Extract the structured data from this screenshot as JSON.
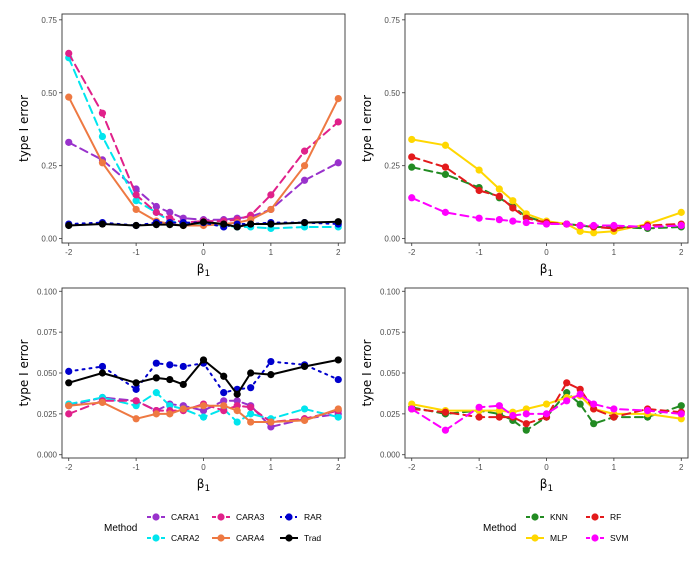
{
  "chart_data": [
    {
      "type": "line",
      "panel": "top-left",
      "xlabel": "β",
      "xlabel_sub": "1",
      "ylabel": "type I error",
      "xlim": [
        -2.1,
        2.1
      ],
      "ylim": [
        -0.015,
        0.77
      ],
      "xticks": [
        "-2",
        "-1",
        "0",
        "1",
        "2"
      ],
      "yticks": [
        "0.00",
        "0.25",
        "0.50",
        "0.75"
      ],
      "series": [
        {
          "name": "CARA1",
          "color": "#9932CC",
          "dash": "8,5",
          "x": [
            -2,
            -1.5,
            -1,
            -0.7,
            -0.5,
            -0.3,
            0,
            0.3,
            0.5,
            0.7,
            1,
            1.5,
            2
          ],
          "y": [
            0.33,
            0.27,
            0.17,
            0.11,
            0.09,
            0.07,
            0.065,
            0.065,
            0.07,
            0.075,
            0.1,
            0.2,
            0.26
          ]
        },
        {
          "name": "CARA2",
          "color": "#00E5EE",
          "dash": "8,5",
          "x": [
            -2,
            -1.5,
            -1,
            -0.7,
            -0.5,
            -0.3,
            0,
            0.3,
            0.5,
            0.7,
            1,
            1.5,
            2
          ],
          "y": [
            0.62,
            0.35,
            0.13,
            0.09,
            0.06,
            0.05,
            0.05,
            0.045,
            0.04,
            0.04,
            0.035,
            0.04,
            0.04
          ]
        },
        {
          "name": "CARA3",
          "color": "#E0218A",
          "dash": "8,5",
          "x": [
            -2,
            -1.5,
            -1,
            -0.7,
            -0.5,
            -0.3,
            0,
            0.3,
            0.5,
            0.7,
            1,
            1.5,
            2
          ],
          "y": [
            0.635,
            0.43,
            0.15,
            0.09,
            0.07,
            0.055,
            0.06,
            0.06,
            0.065,
            0.08,
            0.15,
            0.3,
            0.4
          ]
        },
        {
          "name": "CARA4",
          "color": "#EE7942",
          "dash": "",
          "x": [
            -2,
            -1.5,
            -1,
            -0.7,
            -0.5,
            -0.3,
            0,
            0.3,
            0.5,
            0.7,
            1,
            1.5,
            2
          ],
          "y": [
            0.485,
            0.26,
            0.1,
            0.06,
            0.05,
            0.045,
            0.045,
            0.05,
            0.055,
            0.065,
            0.1,
            0.25,
            0.48
          ]
        },
        {
          "name": "RAR",
          "color": "#0000CD",
          "dash": "2,5",
          "x": [
            -2,
            -1.5,
            -1,
            -0.7,
            -0.5,
            -0.3,
            0,
            0.3,
            0.5,
            0.7,
            1,
            1.5,
            2
          ],
          "y": [
            0.05,
            0.055,
            0.045,
            0.055,
            0.055,
            0.055,
            0.055,
            0.04,
            0.05,
            0.05,
            0.055,
            0.055,
            0.05
          ]
        },
        {
          "name": "Trad",
          "color": "#000000",
          "dash": "",
          "x": [
            -2,
            -1.5,
            -1,
            -0.7,
            -0.5,
            -0.3,
            0,
            0.3,
            0.5,
            0.7,
            1,
            1.5,
            2
          ],
          "y": [
            0.045,
            0.05,
            0.045,
            0.048,
            0.048,
            0.045,
            0.057,
            0.05,
            0.04,
            0.05,
            0.05,
            0.055,
            0.058
          ]
        }
      ]
    },
    {
      "type": "line",
      "panel": "top-right",
      "xlabel": "β",
      "xlabel_sub": "1",
      "ylabel": "type I error",
      "xlim": [
        -2.1,
        2.1
      ],
      "ylim": [
        -0.015,
        0.77
      ],
      "xticks": [
        "-2",
        "-1",
        "0",
        "1",
        "2"
      ],
      "yticks": [
        "0.00",
        "0.25",
        "0.50",
        "0.75"
      ],
      "series": [
        {
          "name": "KNN",
          "color": "#228B22",
          "dash": "8,5",
          "x": [
            -2,
            -1.5,
            -1,
            -0.7,
            -0.5,
            -0.3,
            0,
            0.3,
            0.5,
            0.7,
            1,
            1.5,
            2
          ],
          "y": [
            0.245,
            0.22,
            0.175,
            0.14,
            0.11,
            0.075,
            0.055,
            0.05,
            0.045,
            0.04,
            0.04,
            0.035,
            0.04
          ]
        },
        {
          "name": "MLP",
          "color": "#FFD700",
          "dash": "",
          "x": [
            -2,
            -1.5,
            -1,
            -0.7,
            -0.5,
            -0.3,
            0,
            0.3,
            0.5,
            0.7,
            1,
            1.5,
            2
          ],
          "y": [
            0.34,
            0.32,
            0.235,
            0.17,
            0.13,
            0.085,
            0.06,
            0.05,
            0.025,
            0.02,
            0.025,
            0.05,
            0.09
          ]
        },
        {
          "name": "RF",
          "color": "#E31A1C",
          "dash": "8,5",
          "x": [
            -2,
            -1.5,
            -1,
            -0.7,
            -0.5,
            -0.3,
            0,
            0.3,
            0.5,
            0.7,
            1,
            1.5,
            2
          ],
          "y": [
            0.28,
            0.245,
            0.165,
            0.145,
            0.105,
            0.07,
            0.055,
            0.05,
            0.045,
            0.04,
            0.035,
            0.045,
            0.05
          ]
        },
        {
          "name": "SVM",
          "color": "#FF00FF",
          "dash": "8,5",
          "x": [
            -2,
            -1.5,
            -1,
            -0.7,
            -0.5,
            -0.3,
            0,
            0.3,
            0.5,
            0.7,
            1,
            1.5,
            2
          ],
          "y": [
            0.14,
            0.09,
            0.07,
            0.065,
            0.06,
            0.055,
            0.05,
            0.05,
            0.045,
            0.045,
            0.045,
            0.04,
            0.045
          ]
        }
      ]
    },
    {
      "type": "line",
      "panel": "bottom-left",
      "xlabel": "β",
      "xlabel_sub": "1",
      "ylabel": "type I error",
      "xlim": [
        -2.1,
        2.1
      ],
      "ylim": [
        -0.002,
        0.102
      ],
      "xticks": [
        "-2",
        "-1",
        "0",
        "1",
        "2"
      ],
      "yticks": [
        "0.000",
        "0.025",
        "0.050",
        "0.075",
        "0.100"
      ],
      "series": [
        {
          "name": "CARA1",
          "color": "#9932CC",
          "dash": "8,5",
          "x": [
            -2,
            -1.5,
            -1,
            -0.7,
            -0.5,
            -0.3,
            0,
            0.3,
            0.5,
            0.7,
            1,
            1.5,
            2
          ],
          "y": [
            0.03,
            0.035,
            0.033,
            0.027,
            0.031,
            0.03,
            0.027,
            0.033,
            0.033,
            0.03,
            0.017,
            0.022,
            0.025
          ]
        },
        {
          "name": "CARA2",
          "color": "#00E5EE",
          "dash": "8,5",
          "x": [
            -2,
            -1.5,
            -1,
            -0.7,
            -0.5,
            -0.3,
            0,
            0.3,
            0.5,
            0.7,
            1,
            1.5,
            2
          ],
          "y": [
            0.031,
            0.035,
            0.03,
            0.038,
            0.03,
            0.028,
            0.023,
            0.028,
            0.02,
            0.025,
            0.022,
            0.028,
            0.023
          ]
        },
        {
          "name": "CARA3",
          "color": "#E0218A",
          "dash": "8,5",
          "x": [
            -2,
            -1.5,
            -1,
            -0.7,
            -0.5,
            -0.3,
            0,
            0.3,
            0.5,
            0.7,
            1,
            1.5,
            2
          ],
          "y": [
            0.025,
            0.033,
            0.033,
            0.027,
            0.027,
            0.027,
            0.031,
            0.027,
            0.03,
            0.029,
            0.02,
            0.022,
            0.027
          ]
        },
        {
          "name": "CARA4",
          "color": "#EE7942",
          "dash": "",
          "x": [
            -2,
            -1.5,
            -1,
            -0.7,
            -0.5,
            -0.3,
            0,
            0.3,
            0.5,
            0.7,
            1,
            1.5,
            2
          ],
          "y": [
            0.03,
            0.032,
            0.022,
            0.025,
            0.025,
            0.028,
            0.03,
            0.03,
            0.027,
            0.02,
            0.02,
            0.021,
            0.028
          ]
        },
        {
          "name": "RAR",
          "color": "#0000CD",
          "dash": "2,5",
          "x": [
            -2,
            -1.5,
            -1,
            -0.7,
            -0.5,
            -0.3,
            0,
            0.3,
            0.5,
            0.7,
            1,
            1.5,
            2
          ],
          "y": [
            0.051,
            0.054,
            0.04,
            0.056,
            0.055,
            0.054,
            0.056,
            0.038,
            0.04,
            0.041,
            0.057,
            0.055,
            0.046
          ]
        },
        {
          "name": "Trad",
          "color": "#000000",
          "dash": "",
          "x": [
            -2,
            -1.5,
            -1,
            -0.7,
            -0.5,
            -0.3,
            0,
            0.3,
            0.5,
            0.7,
            1,
            1.5,
            2
          ],
          "y": [
            0.044,
            0.05,
            0.044,
            0.047,
            0.046,
            0.043,
            0.058,
            0.048,
            0.037,
            0.05,
            0.049,
            0.054,
            0.058
          ]
        }
      ]
    },
    {
      "type": "line",
      "panel": "bottom-right",
      "xlabel": "β",
      "xlabel_sub": "1",
      "ylabel": "type I error",
      "xlim": [
        -2.1,
        2.1
      ],
      "ylim": [
        -0.002,
        0.102
      ],
      "xticks": [
        "-2",
        "-1",
        "0",
        "1",
        "2"
      ],
      "yticks": [
        "0.000",
        "0.025",
        "0.050",
        "0.075",
        "0.100"
      ],
      "series": [
        {
          "name": "KNN",
          "color": "#228B22",
          "dash": "8,5",
          "x": [
            -2,
            -1.5,
            -1,
            -0.7,
            -0.5,
            -0.3,
            0,
            0.3,
            0.5,
            0.7,
            1,
            1.5,
            2
          ],
          "y": [
            0.029,
            0.025,
            0.027,
            0.025,
            0.021,
            0.015,
            0.023,
            0.038,
            0.031,
            0.019,
            0.023,
            0.023,
            0.03
          ]
        },
        {
          "name": "MLP",
          "color": "#FFD700",
          "dash": "",
          "x": [
            -2,
            -1.5,
            -1,
            -0.7,
            -0.5,
            -0.3,
            0,
            0.3,
            0.5,
            0.7,
            1,
            1.5,
            2
          ],
          "y": [
            0.031,
            0.027,
            0.027,
            0.027,
            0.026,
            0.028,
            0.031,
            0.035,
            0.036,
            0.028,
            0.025,
            0.025,
            0.022
          ]
        },
        {
          "name": "RF",
          "color": "#E31A1C",
          "dash": "8,5",
          "x": [
            -2,
            -1.5,
            -1,
            -0.7,
            -0.5,
            -0.3,
            0,
            0.3,
            0.5,
            0.7,
            1,
            1.5,
            2
          ],
          "y": [
            0.028,
            0.026,
            0.023,
            0.023,
            0.023,
            0.019,
            0.023,
            0.044,
            0.04,
            0.028,
            0.023,
            0.028,
            0.026
          ]
        },
        {
          "name": "SVM",
          "color": "#FF00FF",
          "dash": "8,5",
          "x": [
            -2,
            -1.5,
            -1,
            -0.7,
            -0.5,
            -0.3,
            0,
            0.3,
            0.5,
            0.7,
            1,
            1.5,
            2
          ],
          "y": [
            0.028,
            0.015,
            0.029,
            0.03,
            0.024,
            0.025,
            0.025,
            0.033,
            0.037,
            0.031,
            0.028,
            0.027,
            0.025
          ]
        }
      ]
    }
  ],
  "legends": [
    {
      "title": "Method",
      "items": [
        "CARA1",
        "CARA3",
        "RAR",
        "CARA2",
        "CARA4",
        "Trad"
      ]
    },
    {
      "title": "Method",
      "items": [
        "KNN",
        "RF",
        "MLP",
        "SVM"
      ]
    }
  ]
}
